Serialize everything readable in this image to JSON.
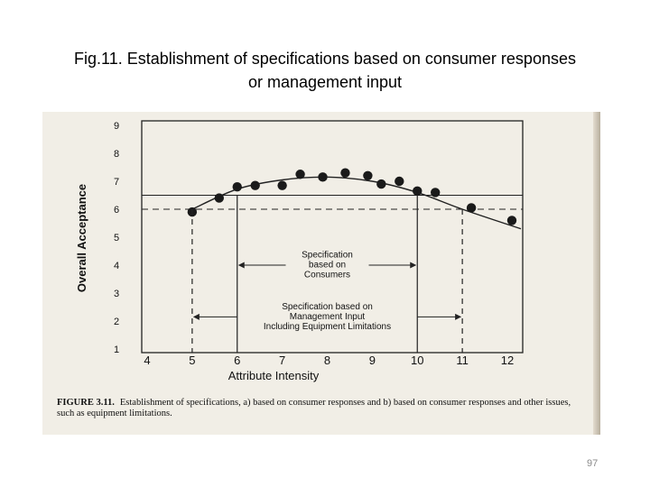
{
  "slide": {
    "title_line1": "Fig.11. Establishment  of specifications based on consumer responses",
    "title_line2": "or management input",
    "page_number": "97"
  },
  "figure": {
    "caption_label": "FIGURE 3.11.",
    "caption_text": "Establishment of specifications, a) based on consumer responses and b) based on consumer responses and other issues, such as equipment limitations."
  },
  "chart_data": {
    "type": "scatter",
    "xlabel": "Attribute Intensity",
    "ylabel": "Overall Acceptance",
    "xlim": [
      4,
      12
    ],
    "ylim": [
      1,
      9
    ],
    "x_ticks": [
      4,
      5,
      6,
      7,
      8,
      9,
      10,
      11,
      12
    ],
    "y_ticks": [
      1,
      2,
      3,
      4,
      5,
      6,
      7,
      8,
      9
    ],
    "points": [
      {
        "x": 5.0,
        "y": 5.9
      },
      {
        "x": 5.6,
        "y": 6.4
      },
      {
        "x": 6.0,
        "y": 6.8
      },
      {
        "x": 6.4,
        "y": 6.85
      },
      {
        "x": 7.0,
        "y": 6.85
      },
      {
        "x": 7.4,
        "y": 7.25
      },
      {
        "x": 7.9,
        "y": 7.15
      },
      {
        "x": 8.4,
        "y": 7.3
      },
      {
        "x": 8.9,
        "y": 7.2
      },
      {
        "x": 9.2,
        "y": 6.9
      },
      {
        "x": 9.6,
        "y": 7.0
      },
      {
        "x": 10.0,
        "y": 6.65
      },
      {
        "x": 10.4,
        "y": 6.6
      },
      {
        "x": 11.2,
        "y": 6.05
      },
      {
        "x": 12.1,
        "y": 5.6
      }
    ],
    "fit_curve": [
      {
        "x": 5.0,
        "y": 6.0
      },
      {
        "x": 6.0,
        "y": 6.72
      },
      {
        "x": 7.0,
        "y": 7.05
      },
      {
        "x": 8.0,
        "y": 7.15
      },
      {
        "x": 9.0,
        "y": 7.0
      },
      {
        "x": 10.0,
        "y": 6.6
      },
      {
        "x": 11.0,
        "y": 6.0
      },
      {
        "x": 12.3,
        "y": 5.3
      }
    ],
    "reference_lines": [
      {
        "y": 6.5,
        "style": "solid"
      },
      {
        "y": 6.0,
        "style": "dashed"
      }
    ],
    "specifications": [
      {
        "label_lines": [
          "Specification",
          "based on",
          "Consumers"
        ],
        "x_from": 6.0,
        "x_to": 10.0,
        "at_y": 4.0,
        "boundary_style": "solid"
      },
      {
        "label_lines": [
          "Specification based on",
          "Management Input",
          "Including Equipment Limitations"
        ],
        "x_from": 5.0,
        "x_to": 11.0,
        "at_y": 2.15,
        "boundary_style": "dashed"
      }
    ],
    "legend": "none",
    "grid": false
  }
}
